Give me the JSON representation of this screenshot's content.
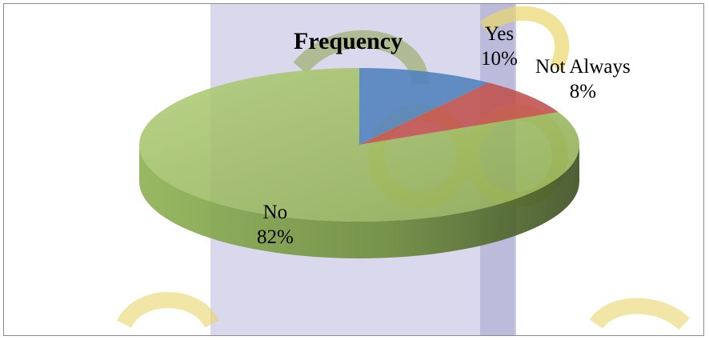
{
  "chart_data": {
    "type": "pie",
    "title": "Frequency",
    "categories": [
      "Yes",
      "Not Always",
      "No"
    ],
    "values": [
      10,
      8,
      82
    ],
    "value_labels": [
      "10%",
      "8%",
      "82%"
    ],
    "colors": [
      "#4f81bd",
      "#c0504d",
      "#9bbb59"
    ],
    "legend": "none"
  },
  "watermark": {
    "colors": [
      "#e9d66a",
      "#8ca44a",
      "#a9a8d2"
    ]
  }
}
